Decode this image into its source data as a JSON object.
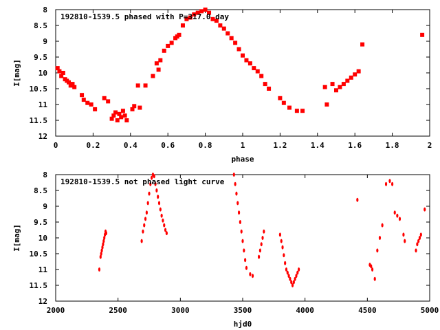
{
  "chart_data": [
    {
      "type": "scatter",
      "title": "192810-1539.5 phased with P=317.0 day",
      "xlabel": "phase",
      "ylabel": "I[mag]",
      "xlim": [
        0,
        2
      ],
      "ylim": [
        8,
        12
      ],
      "y_inverted": true,
      "xticks": [
        "0",
        "0.2",
        "0.4",
        "0.6",
        "0.8",
        "1",
        "1.2",
        "1.4",
        "1.6",
        "1.8",
        "2"
      ],
      "yticks": [
        "8",
        "8.5",
        "9",
        "9.5",
        "10",
        "10.5",
        "11",
        "11.5",
        "12"
      ],
      "marker_color": "#ff0000",
      "series": [
        {
          "x": [
            0.01,
            0.02,
            0.03,
            0.04,
            0.05,
            0.06,
            0.07,
            0.08,
            0.09,
            0.1,
            0.14,
            0.15,
            0.17,
            0.19,
            0.21,
            0.26,
            0.28,
            0.3,
            0.31,
            0.32,
            0.33,
            0.34,
            0.35,
            0.36,
            0.37,
            0.38,
            0.41,
            0.42,
            0.44,
            0.45,
            0.48,
            0.52,
            0.54,
            0.55,
            0.56,
            0.58,
            0.6,
            0.62,
            0.64,
            0.65,
            0.66,
            0.68,
            0.7,
            0.72,
            0.74,
            0.76,
            0.78,
            0.8,
            0.82,
            0.84,
            0.86,
            0.88,
            0.9,
            0.92,
            0.94,
            0.96,
            0.98,
            1.0,
            1.02,
            1.04,
            1.06,
            1.08,
            1.1,
            1.12,
            1.14,
            1.2,
            1.22,
            1.25,
            1.29,
            1.32,
            1.44,
            1.45,
            1.48,
            1.5,
            1.52,
            1.54,
            1.56,
            1.58,
            1.6,
            1.62,
            1.64,
            1.96
          ],
          "y": [
            9.85,
            9.95,
            10.1,
            10.0,
            10.2,
            10.25,
            10.3,
            10.4,
            10.35,
            10.45,
            10.7,
            10.85,
            10.95,
            11.0,
            11.15,
            10.8,
            10.9,
            11.45,
            11.35,
            11.25,
            11.5,
            11.3,
            11.4,
            11.2,
            11.35,
            11.5,
            11.15,
            11.05,
            10.4,
            11.1,
            10.4,
            10.1,
            9.7,
            9.9,
            9.6,
            9.3,
            9.15,
            9.05,
            8.9,
            8.85,
            8.8,
            8.5,
            8.3,
            8.25,
            8.15,
            8.1,
            8.05,
            8.0,
            8.1,
            8.3,
            8.35,
            8.5,
            8.6,
            8.75,
            8.9,
            9.05,
            9.25,
            9.45,
            9.6,
            9.7,
            9.85,
            9.95,
            10.1,
            10.35,
            10.5,
            10.8,
            10.95,
            11.1,
            11.2,
            11.2,
            10.45,
            11.0,
            10.35,
            10.55,
            10.45,
            10.35,
            10.25,
            10.15,
            10.05,
            9.95,
            9.1,
            8.8
          ]
        }
      ]
    },
    {
      "type": "scatter",
      "title": "192810-1539.5 not phased light curve",
      "xlabel": "hjd0",
      "ylabel": "I[mag]",
      "xlim": [
        2000,
        5000
      ],
      "ylim": [
        8,
        12
      ],
      "y_inverted": true,
      "xticks": [
        "2000",
        "2500",
        "3000",
        "3500",
        "4000",
        "4500",
        "5000"
      ],
      "yticks": [
        "8",
        "8.5",
        "9",
        "9.5",
        "10",
        "10.5",
        "11",
        "11.5",
        "12"
      ],
      "marker_color": "#ff0000",
      "series": [
        {
          "x": [
            2350,
            2360,
            2365,
            2370,
            2375,
            2380,
            2385,
            2390,
            2395,
            2400,
            2405,
            2690,
            2700,
            2710,
            2720,
            2730,
            2740,
            2750,
            2760,
            2770,
            2780,
            2790,
            2800,
            2810,
            2820,
            2830,
            2840,
            2850,
            2860,
            2870,
            2880,
            2890,
            3430,
            3440,
            3450,
            3460,
            3470,
            3480,
            3490,
            3500,
            3510,
            3520,
            3530,
            3560,
            3580,
            3630,
            3640,
            3650,
            3660,
            3670,
            3800,
            3810,
            3820,
            3830,
            3840,
            3850,
            3860,
            3870,
            3880,
            3890,
            3900,
            3910,
            3920,
            3930,
            3940,
            3950,
            4420,
            4520,
            4530,
            4540,
            4560,
            4580,
            4600,
            4620,
            4650,
            4680,
            4700,
            4720,
            4740,
            4760,
            4790,
            4800,
            4890,
            4900,
            4910,
            4920,
            4930,
            4960
          ],
          "y": [
            11.0,
            10.6,
            10.5,
            10.4,
            10.3,
            10.2,
            10.1,
            10.0,
            9.9,
            9.8,
            9.85,
            10.1,
            9.8,
            9.6,
            9.4,
            9.2,
            8.9,
            8.6,
            8.3,
            8.1,
            8.0,
            8.05,
            8.3,
            8.5,
            8.7,
            8.9,
            9.1,
            9.3,
            9.45,
            9.6,
            9.75,
            9.85,
            8.0,
            8.3,
            8.6,
            8.9,
            9.2,
            9.5,
            9.8,
            10.1,
            10.4,
            10.7,
            10.95,
            11.15,
            11.2,
            10.6,
            10.4,
            10.2,
            10.0,
            9.8,
            9.9,
            10.1,
            10.3,
            10.55,
            10.8,
            11.0,
            11.1,
            11.2,
            11.3,
            11.4,
            11.5,
            11.4,
            11.3,
            11.2,
            11.1,
            11.0,
            8.8,
            10.85,
            10.9,
            11.0,
            11.3,
            10.4,
            10.0,
            9.6,
            8.3,
            8.2,
            8.3,
            9.2,
            9.3,
            9.4,
            9.9,
            10.1,
            10.4,
            10.2,
            10.1,
            10.0,
            9.9,
            9.1
          ]
        }
      ]
    }
  ]
}
